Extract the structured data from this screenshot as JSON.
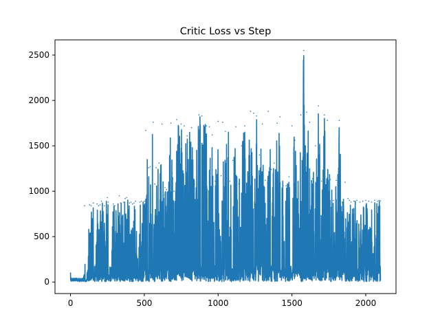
{
  "chart_data": {
    "type": "line",
    "title": "Critic Loss vs Step",
    "xlabel": "",
    "ylabel": "",
    "xlim": [
      -105,
      2205
    ],
    "ylim": [
      -127,
      2667
    ],
    "xticks": [
      0,
      500,
      1000,
      1500,
      2000
    ],
    "xtick_labels": [
      "0",
      "500",
      "1000",
      "1500",
      "2000"
    ],
    "yticks": [
      0,
      500,
      1000,
      1500,
      2000,
      2500
    ],
    "ytick_labels": [
      "0",
      "500",
      "1000",
      "1500",
      "2000",
      "2500"
    ],
    "grid": false,
    "legend": "none",
    "n_steps": 2100,
    "series": [
      {
        "color": "#1f77b4",
        "x": [
          0,
          5,
          20,
          60,
          95,
          100,
          110,
          130,
          140,
          155,
          165,
          180,
          190,
          200,
          210,
          230,
          250,
          255,
          270,
          290,
          300,
          320,
          330,
          340,
          360,
          370,
          380,
          400,
          410,
          420,
          430,
          440,
          460,
          470,
          480,
          500,
          510,
          530,
          540,
          560,
          570,
          580,
          600,
          620,
          630,
          640,
          650,
          660,
          680,
          690,
          700,
          720,
          750,
          770,
          790,
          820,
          840,
          870,
          890,
          920,
          940,
          960,
          980,
          1000,
          1020,
          1030,
          1050,
          1070,
          1080,
          1100,
          1120,
          1140,
          1160,
          1180,
          1200,
          1220,
          1240,
          1260,
          1280,
          1300,
          1320,
          1340,
          1360,
          1380,
          1400,
          1420,
          1440,
          1460,
          1480,
          1500,
          1520,
          1540,
          1560,
          1580,
          1600,
          1620,
          1640,
          1660,
          1680,
          1700,
          1720,
          1740,
          1760,
          1780,
          1800,
          1820,
          1840,
          1860,
          1880,
          1890,
          1900,
          1920,
          1940,
          1960,
          1980,
          2000,
          2020,
          2040,
          2060,
          2080,
          2090,
          2100
        ],
        "y": [
          100,
          8,
          40,
          20,
          840,
          5,
          30,
          850,
          840,
          870,
          50,
          860,
          840,
          850,
          890,
          840,
          930,
          880,
          30,
          860,
          840,
          850,
          950,
          870,
          880,
          920,
          930,
          870,
          880,
          860,
          870,
          890,
          60,
          880,
          890,
          890,
          1670,
          1260,
          1270,
          1760,
          1080,
          1260,
          1310,
          1740,
          960,
          1040,
          1020,
          990,
          1750,
          1200,
          1000,
          1790,
          1740,
          1720,
          1610,
          1700,
          1080,
          1840,
          1830,
          1720,
          1710,
          1620,
          1110,
          1770,
          1170,
          1760,
          1660,
          1650,
          1110,
          1340,
          1710,
          1080,
          1500,
          1720,
          1190,
          1880,
          1860,
          1830,
          1400,
          1740,
          1120,
          1880,
          1240,
          1310,
          1750,
          1820,
          1060,
          1060,
          1160,
          1720,
          1560,
          1100,
          1840,
          2550,
          1870,
          1760,
          1140,
          1500,
          1940,
          1110,
          1840,
          1780,
          1130,
          900,
          1120,
          1780,
          880,
          1100,
          920,
          900,
          880,
          890,
          900,
          880,
          890,
          900,
          890,
          880,
          900,
          890,
          900,
          895
        ]
      }
    ]
  }
}
